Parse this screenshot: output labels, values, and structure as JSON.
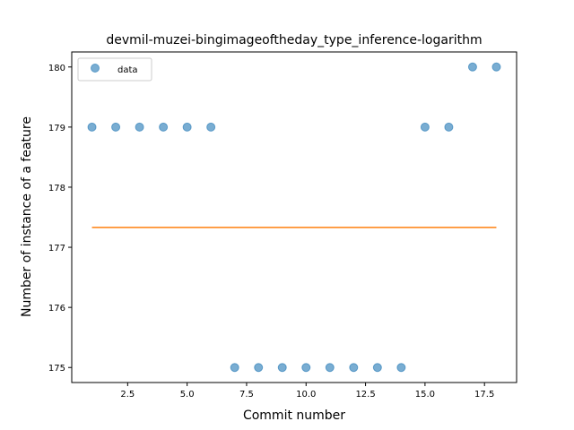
{
  "chart_data": {
    "type": "scatter",
    "title": "devmil-muzei-bingimageoftheday_type_inference-logarithm",
    "xlabel": "Commit number",
    "ylabel": "Number of instance of a feature",
    "xlim": [
      0.15,
      18.85
    ],
    "ylim": [
      174.75,
      180.25
    ],
    "xticks": [
      2.5,
      5.0,
      7.5,
      10.0,
      12.5,
      15.0,
      17.5
    ],
    "xtick_labels": [
      "2.5",
      "5.0",
      "7.5",
      "10.0",
      "12.5",
      "15.0",
      "17.5"
    ],
    "yticks": [
      175,
      176,
      177,
      178,
      179,
      180
    ],
    "ytick_labels": [
      "175",
      "176",
      "177",
      "178",
      "179",
      "180"
    ],
    "grid": false,
    "legend_position": "top-left",
    "series": [
      {
        "name": "data",
        "kind": "scatter",
        "color": "#1f77b4",
        "x": [
          1,
          2,
          3,
          4,
          5,
          6,
          7,
          8,
          9,
          10,
          11,
          12,
          13,
          14,
          15,
          16,
          17,
          18
        ],
        "y": [
          179,
          179,
          179,
          179,
          179,
          179,
          175,
          175,
          175,
          175,
          175,
          175,
          175,
          175,
          179,
          179,
          180,
          180
        ]
      },
      {
        "kind": "line",
        "color": "#ff7f0e",
        "x": [
          1,
          18
        ],
        "y": [
          177.33,
          177.33
        ]
      }
    ]
  }
}
